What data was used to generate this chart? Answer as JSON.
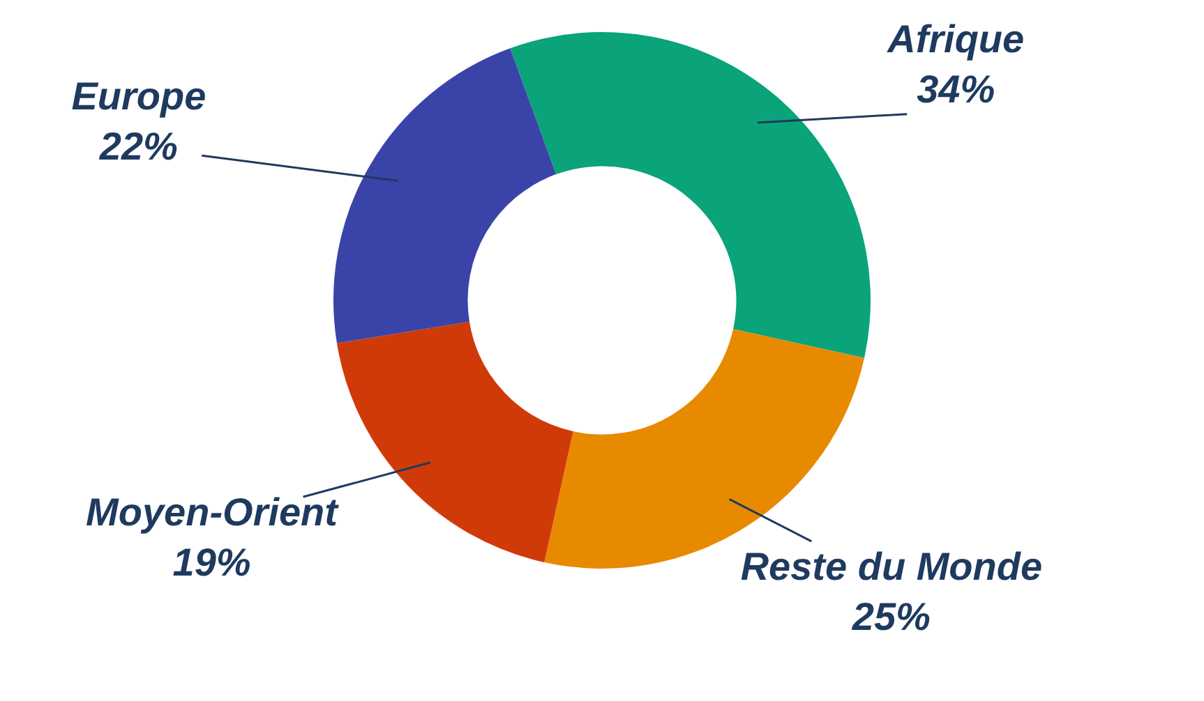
{
  "chart_data": {
    "type": "donut",
    "categories": [
      "Afrique",
      "Reste du Monde",
      "Moyen-Orient",
      "Europe"
    ],
    "values": [
      34,
      25,
      19,
      22
    ],
    "colors": [
      "#0aa37a",
      "#e88a00",
      "#d03a08",
      "#3a44a8"
    ],
    "value_labels": [
      "34%",
      "25%",
      "19%",
      "22%"
    ],
    "legend": false
  }
}
